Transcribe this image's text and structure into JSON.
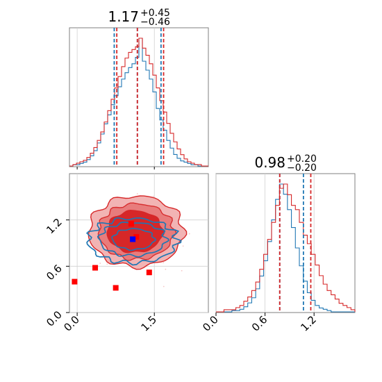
{
  "chart_data": {
    "type": "corner",
    "colors": {
      "red": "#d62728",
      "blue": "#1f77b4",
      "red_fill_light": "#f2b4b4",
      "red_fill_mid": "#e87a7a",
      "red_fill_dark": "#d62728",
      "grid": "#d0d0d0",
      "frame": "#7f7f7f"
    },
    "params": [
      {
        "median": "1.17",
        "plus": "+0.45",
        "minus": "−0.46",
        "xlim": [
          -0.15,
          2.55
        ],
        "ticks": [
          "0.0",
          "1.5"
        ],
        "tick_values": [
          0.0,
          1.5
        ]
      },
      {
        "median": "0.98",
        "plus": "+0.20",
        "minus": "−0.20",
        "xlim": [
          0.0,
          1.7
        ],
        "ticks": [
          "0.0",
          "0.6",
          "1.2"
        ],
        "tick_values": [
          0.0,
          0.6,
          1.2
        ]
      }
    ],
    "hist1": {
      "blue_quantiles": [
        0.72,
        1.17,
        1.63
      ],
      "red_quantiles": [
        0.77,
        1.17,
        1.68
      ],
      "blue_counts": [
        0,
        1,
        1,
        2,
        3,
        5,
        8,
        12,
        18,
        25,
        33,
        40,
        48,
        55,
        62,
        68,
        73,
        77,
        80,
        85,
        100,
        82,
        75,
        68,
        58,
        45,
        36,
        28,
        20,
        14,
        9,
        6,
        4,
        3,
        2,
        1,
        1,
        0,
        0,
        0
      ],
      "red_counts": [
        0,
        1,
        2,
        3,
        4,
        6,
        9,
        13,
        18,
        24,
        31,
        39,
        47,
        55,
        63,
        70,
        76,
        80,
        82,
        84,
        90,
        83,
        78,
        72,
        64,
        55,
        46,
        38,
        30,
        23,
        17,
        12,
        8,
        5,
        3,
        2,
        1,
        1,
        0,
        0
      ]
    },
    "hist2": {
      "blue_quantiles": [
        0.78,
        1.07
      ],
      "red_quantiles": [
        0.78,
        1.16
      ],
      "blue_counts": [
        0,
        0,
        0,
        0,
        1,
        1,
        2,
        4,
        7,
        11,
        18,
        28,
        40,
        55,
        72,
        88,
        100,
        92,
        80,
        66,
        50,
        36,
        24,
        15,
        9,
        5,
        3,
        2,
        1,
        0,
        0,
        0,
        0,
        0,
        0
      ],
      "red_counts": [
        0,
        0,
        1,
        1,
        1,
        2,
        3,
        5,
        7,
        10,
        14,
        20,
        27,
        34,
        42,
        50,
        58,
        60,
        55,
        50,
        48,
        42,
        36,
        32,
        27,
        22,
        17,
        13,
        10,
        8,
        6,
        4,
        3,
        2,
        1
      ]
    },
    "scatter": {
      "ylim": [
        0.0,
        1.8
      ],
      "yticks": [
        "0.0",
        "0.6",
        "1.2"
      ],
      "ytick_values": [
        0.0,
        0.6,
        1.2
      ],
      "red_center": [
        1.15,
        1.05
      ],
      "blue_center": [
        1.08,
        0.95
      ],
      "red_squares": [
        [
          -0.05,
          0.4
        ],
        [
          0.35,
          0.58
        ],
        [
          0.75,
          0.32
        ],
        [
          1.05,
          1.15
        ],
        [
          1.15,
          0.98
        ],
        [
          1.4,
          0.52
        ]
      ],
      "blue_squares": [
        [
          1.08,
          0.95
        ]
      ]
    }
  }
}
